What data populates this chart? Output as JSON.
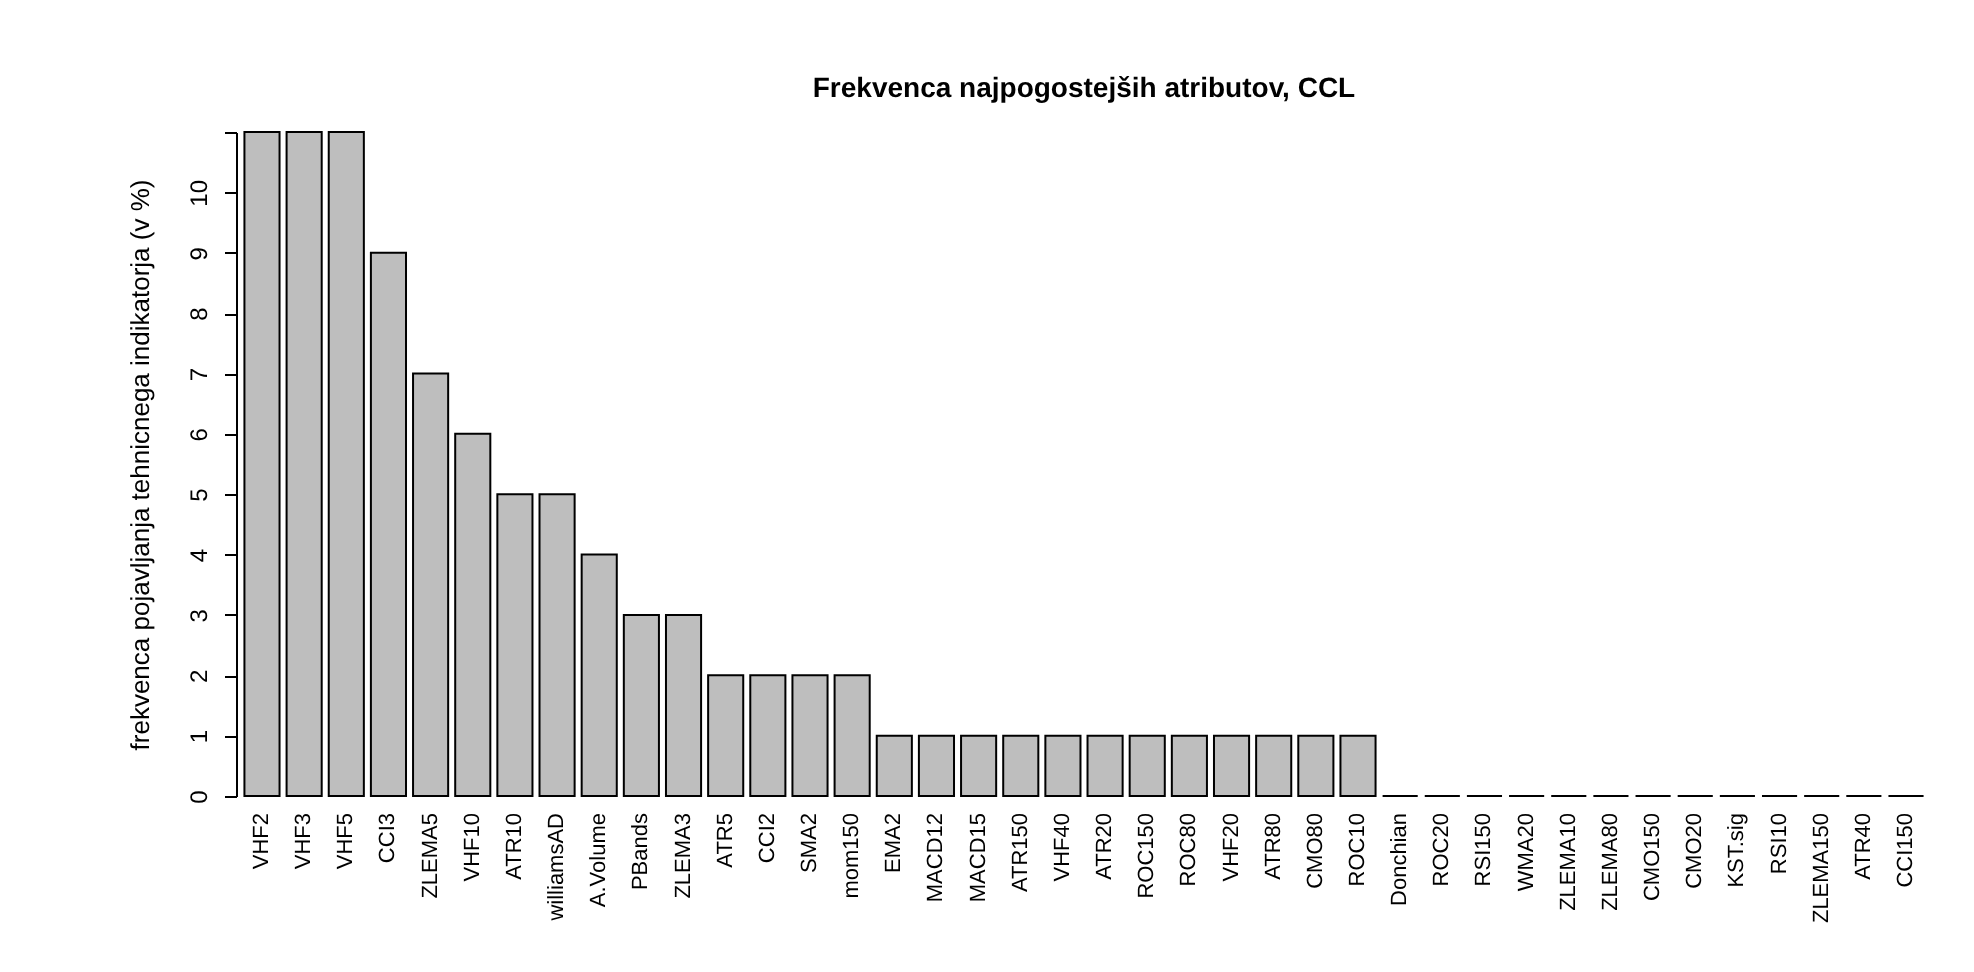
{
  "chart_data": {
    "type": "bar",
    "title": "Frekvenca najpogostejših atributov, CCL",
    "ylabel": "frekvenca pojavljanja tehnicnega indikatorja (v %)",
    "categories": [
      "VHF2",
      "VHF3",
      "VHF5",
      "CCI3",
      "ZLEMA5",
      "VHF10",
      "ATR10",
      "williamsAD",
      "A.Volume",
      "PBands",
      "ZLEMA3",
      "ATR5",
      "CCI2",
      "SMA2",
      "mom150",
      "EMA2",
      "MACD12",
      "MACD15",
      "ATR150",
      "VHF40",
      "ATR20",
      "ROC150",
      "ROC80",
      "VHF20",
      "ATR80",
      "CMO80",
      "ROC10",
      "Donchian",
      "ROC20",
      "RSI150",
      "WMA20",
      "ZLEMA10",
      "ZLEMA80",
      "CMO150",
      "CMO20",
      "KST.sig",
      "RSI10",
      "ZLEMA150",
      "ATR40",
      "CCI150"
    ],
    "values": [
      11,
      11,
      11,
      9,
      7,
      6,
      5,
      5,
      4,
      3,
      3,
      2,
      2,
      2,
      2,
      1,
      1,
      1,
      1,
      1,
      1,
      1,
      1,
      1,
      1,
      1,
      1,
      0,
      0,
      0,
      0,
      0,
      0,
      0,
      0,
      0,
      0,
      0,
      0,
      0
    ],
    "color": "#bebebe",
    "ylim": [
      0,
      11
    ],
    "yticks": [
      0,
      1,
      2,
      3,
      4,
      5,
      6,
      7,
      8,
      9,
      10,
      {
        "value": 11,
        "label": null
      }
    ],
    "grid": false
  }
}
